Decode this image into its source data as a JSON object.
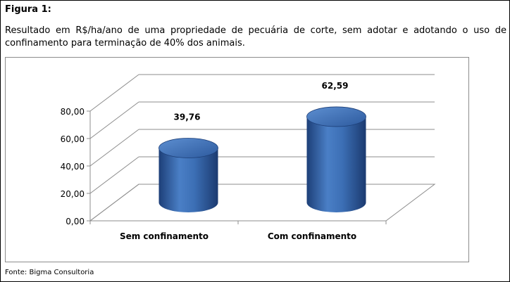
{
  "figure_label": "Figura 1:",
  "caption": "Resultado em R$/ha/ano de uma propriedade de pecuária de corte, sem adotar e adotando o uso de confinamento para terminação de 40% dos animais.",
  "source": "Fonte: Bigma Consultoria",
  "chart_data": {
    "type": "bar",
    "style": "3d-cylinder",
    "title": "",
    "xlabel": "",
    "ylabel": "",
    "categories": [
      "Sem confinamento",
      "Com  confinamento"
    ],
    "values": [
      39.76,
      62.59
    ],
    "value_labels": [
      "39,76",
      "62,59"
    ],
    "yticks": [
      "0,00",
      "20,00",
      "40,00",
      "60,00",
      "80,00"
    ],
    "ylim": [
      0,
      80
    ],
    "grid": true,
    "legend": false,
    "bar_color": "#3f72b8"
  }
}
